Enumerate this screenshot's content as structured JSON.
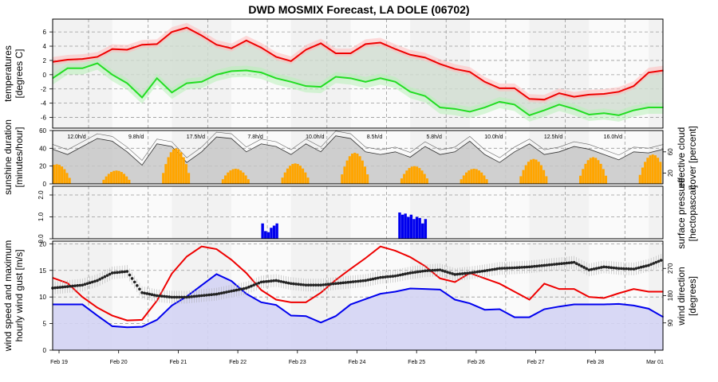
{
  "title": "DWD MOSMIX Forecast, LA DOLE (06702)",
  "x_dates": [
    "Feb 19",
    "Feb 20",
    "Feb 21",
    "Feb 22",
    "Feb 23",
    "Feb 24",
    "Feb 25",
    "Feb 26",
    "Feb 27",
    "Feb 28",
    "Mar 01"
  ],
  "colors": {
    "temp": "#ee0000",
    "dew": "#22dd22",
    "wind": "#0000ee",
    "gust": "#ee0000",
    "sun": "#ffa500",
    "precip": "#0000ee",
    "cloud": "#c8c8c8",
    "panel_shade": "#f2f2f2",
    "grid": "#999999"
  },
  "chart_data": [
    {
      "id": "temperature",
      "type": "line",
      "ylabel": [
        "temperatures",
        "[degrees C]"
      ],
      "ylim": [
        -7.5,
        7.8
      ],
      "yticks": [
        -6,
        -4,
        -2,
        0,
        2,
        4,
        6
      ],
      "x": [
        0,
        0.25,
        0.5,
        0.75,
        1,
        1.25,
        1.5,
        1.75,
        2,
        2.25,
        2.5,
        2.75,
        3,
        3.25,
        3.5,
        3.75,
        4,
        4.25,
        4.5,
        4.75,
        5,
        5.25,
        5.5,
        5.75,
        6,
        6.25,
        6.5,
        6.75,
        7,
        7.25,
        7.5,
        7.75,
        8,
        8.25,
        8.5,
        8.75,
        9,
        9.25,
        9.5,
        9.75,
        10,
        10.25
      ],
      "series": [
        {
          "values": [
            1.8,
            2.1,
            2.2,
            2.5,
            3.6,
            3.5,
            4.2,
            4.3,
            6.0,
            6.6,
            5.5,
            4.2,
            3.7,
            4.8,
            3.8,
            2.5,
            1.9,
            3.5,
            4.4,
            3.0,
            3.0,
            4.3,
            4.5,
            3.6,
            2.8,
            2.4,
            1.5,
            0.8,
            0.4,
            -1.0,
            -1.9,
            -1.9,
            -3.4,
            -3.5,
            -2.6,
            -3.1,
            -2.8,
            -2.7,
            -2.4,
            -1.6,
            0.3,
            0.6
          ]
        },
        {
          "values": [
            -0.5,
            0.9,
            0.9,
            1.6,
            0.0,
            -1.2,
            -3.2,
            -0.5,
            -2.5,
            -1.2,
            -1.0,
            0.0,
            0.5,
            0.6,
            0.3,
            -0.5,
            -1.0,
            -1.6,
            -1.7,
            -0.3,
            -0.5,
            -1.0,
            -0.5,
            -1.0,
            -2.4,
            -3.0,
            -4.6,
            -4.8,
            -5.2,
            -4.6,
            -3.8,
            -4.2,
            -5.7,
            -5.0,
            -4.2,
            -4.8,
            -5.6,
            -5.4,
            -5.7,
            -5.0,
            -4.6,
            -4.6
          ]
        }
      ]
    },
    {
      "id": "sunshine",
      "type": "bar",
      "ylabel": [
        "sunshine duration",
        "[minutes/hour]"
      ],
      "ylim": [
        0,
        60
      ],
      "yticks": [
        0,
        20,
        40,
        60
      ],
      "y2label": [
        "effective cloud",
        "cover [percent]"
      ],
      "y2ticks": [
        20,
        60
      ],
      "daily_totals": [
        "12.0h/d",
        "9.8h/d",
        "17.5h/d",
        "7.8h/d",
        "10.0h/d",
        "8.5h/d",
        "5.8h/d",
        "10.0h/d",
        "12.5h/d",
        "16.0h/d"
      ],
      "sun_peaks": [
        22,
        15,
        40,
        17,
        23,
        35,
        20,
        17,
        28,
        30,
        33
      ]
    },
    {
      "id": "precipitation",
      "type": "bar",
      "ylabel": [
        "surface pressure",
        "[hectopascal]"
      ],
      "ylim": [
        0.0,
        2.4
      ],
      "yticks": [
        "0.0",
        "1.0",
        "2.0"
      ],
      "bars": [
        {
          "x": 3.5,
          "values": [
            0.7,
            0.35,
            0.3,
            0.5,
            0.6,
            0.7
          ]
        },
        {
          "x": 5.8,
          "values": [
            1.2,
            1.1,
            1.15,
            1.0,
            1.1,
            0.9,
            1.0,
            0.95,
            0.7,
            0.9
          ]
        }
      ]
    },
    {
      "id": "wind",
      "type": "line",
      "ylabel": [
        "wind speed and maximum",
        "hourly wind gust [m/s]"
      ],
      "ylim": [
        0,
        20.5
      ],
      "yticks": [
        0,
        5,
        10,
        15,
        20
      ],
      "y2label": [
        "wind direction",
        "[degrees]"
      ],
      "y2ticks": [
        90,
        180,
        270
      ],
      "y2lim": [
        0,
        360
      ],
      "x": [
        0,
        0.25,
        0.5,
        0.75,
        1,
        1.25,
        1.5,
        1.75,
        2,
        2.25,
        2.5,
        2.75,
        3,
        3.25,
        3.5,
        3.75,
        4,
        4.25,
        4.5,
        4.75,
        5,
        5.25,
        5.5,
        5.75,
        6,
        6.25,
        6.5,
        6.75,
        7,
        7.25,
        7.5,
        7.75,
        8,
        8.25,
        8.5,
        8.75,
        9,
        9.25,
        9.5,
        9.75,
        10,
        10.25
      ],
      "series": [
        {
          "values": [
            8.6,
            8.6,
            8.6,
            6.5,
            4.5,
            4.3,
            4.4,
            5.7,
            8.4,
            10.1,
            12.2,
            14.3,
            13.0,
            10.6,
            9.0,
            8.5,
            6.5,
            6.4,
            5.2,
            6.4,
            8.6,
            9.6,
            10.6,
            11.0,
            11.6,
            11.5,
            11.4,
            9.5,
            8.8,
            7.6,
            7.7,
            6.2,
            6.2,
            7.7,
            8.2,
            8.6,
            8.6,
            8.6,
            8.7,
            8.4,
            7.8,
            6.2
          ]
        },
        {
          "values": [
            13.6,
            12.6,
            10.0,
            8.0,
            6.5,
            5.6,
            5.7,
            9.3,
            14.4,
            17.6,
            19.5,
            19.0,
            17.0,
            14.5,
            11.3,
            9.5,
            9.0,
            9.0,
            10.8,
            13.2,
            15.3,
            17.3,
            19.5,
            18.7,
            17.5,
            15.8,
            13.5,
            12.8,
            14.5,
            13.5,
            12.5,
            11.0,
            9.5,
            12.5,
            11.5,
            11.5,
            10.0,
            9.8,
            10.7,
            11.5,
            11.0,
            11.0
          ]
        },
        {
          "values": [
            205,
            210,
            215,
            230,
            255,
            260,
            190,
            180,
            175,
            175,
            180,
            185,
            195,
            205,
            225,
            230,
            220,
            215,
            215,
            220,
            225,
            230,
            240,
            245,
            255,
            262,
            265,
            250,
            255,
            262,
            270,
            272,
            275,
            280,
            285,
            290,
            265,
            275,
            270,
            268,
            280,
            300
          ]
        }
      ]
    }
  ]
}
